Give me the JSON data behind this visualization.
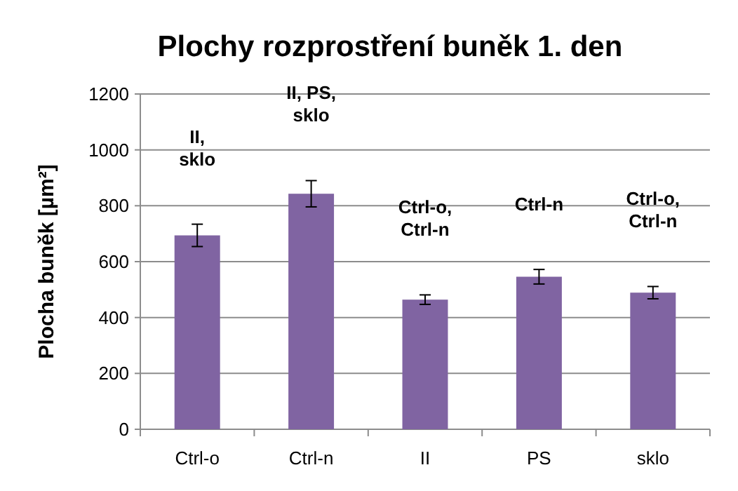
{
  "chart_data": {
    "type": "bar",
    "title": "Plochy rozprostření buněk 1. den",
    "ylabel": "Plocha buněk [µm²]",
    "categories": [
      "Ctrl-o",
      "Ctrl-n",
      "II",
      "PS",
      "sklo"
    ],
    "values": [
      694,
      843,
      464,
      546,
      489
    ],
    "errors": [
      40,
      47,
      17,
      26,
      22
    ],
    "color": "#8064a2",
    "ylim": [
      0,
      1200
    ],
    "yticks": [
      0,
      200,
      400,
      600,
      800,
      1000,
      1200
    ],
    "grid": "y",
    "annotations": [
      "II,\nsklo",
      "II, PS,\nsklo",
      "Ctrl-o,\nCtrl-n",
      "Ctrl-n",
      "Ctrl-o,\nCtrl-n"
    ]
  }
}
